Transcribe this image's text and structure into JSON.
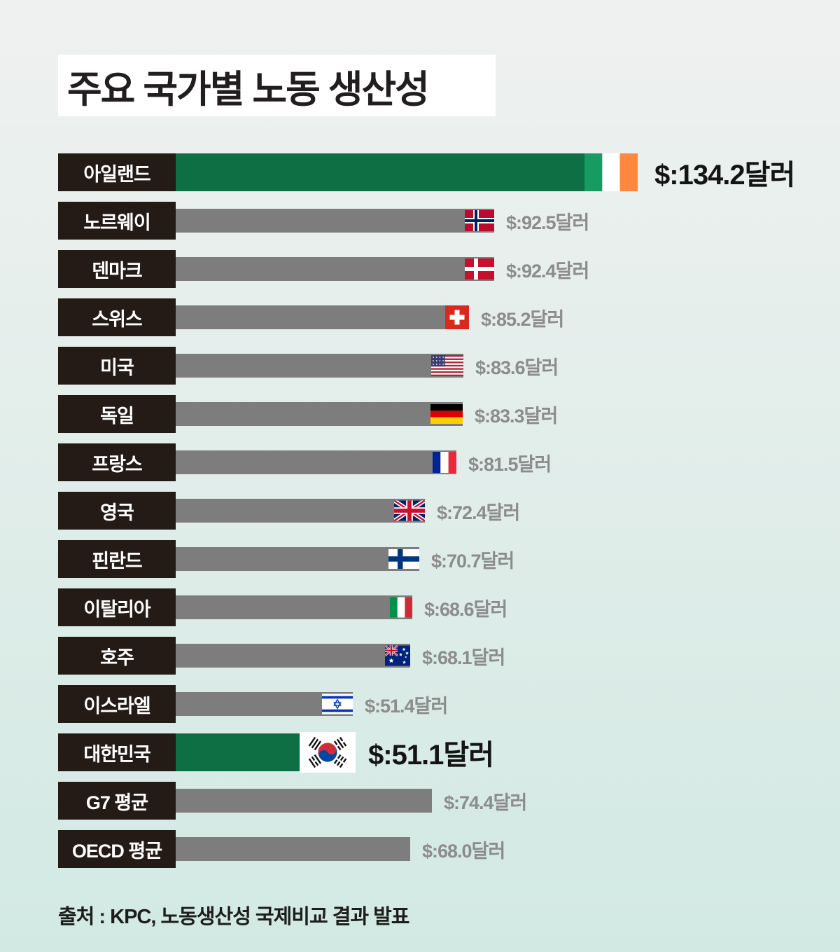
{
  "header": {
    "title": "주요 국가별 노동 생산성"
  },
  "footer": {
    "source": "출처 : KPC, 노동생산성 국제비교 결과 발표"
  },
  "chart_data": {
    "type": "bar",
    "orientation": "horizontal",
    "title": "주요 국가별 노동 생산성",
    "source": "출처 : KPC, 노동생산성 국제비교 결과 발표",
    "xlim": [
      0,
      140
    ],
    "grid": false,
    "legend": "none",
    "categories": [
      "아일랜드",
      "노르웨이",
      "덴마크",
      "스위스",
      "미국",
      "독일",
      "프랑스",
      "영국",
      "핀란드",
      "이탈리아",
      "호주",
      "이스라엘",
      "대한민국",
      "G7 평균",
      "OECD 평균"
    ],
    "values": [
      134.2,
      92.5,
      92.4,
      85.2,
      83.6,
      83.3,
      81.5,
      72.4,
      70.7,
      68.6,
      68.1,
      51.4,
      51.1,
      74.4,
      68.0
    ],
    "colors": {
      "bar_default": "#7d7d7d",
      "bar_highlight": "#0e6f44",
      "category_box_bg": "#241a16",
      "category_box_text": "#ffffff",
      "value_text": "#8c8c8c",
      "value_text_highlight": "#141414"
    },
    "rows": [
      {
        "label": "아일랜드",
        "value": 134.2,
        "value_label": "$:134.2달러",
        "flag": "ireland",
        "highlight": true
      },
      {
        "label": "노르웨이",
        "value": 92.5,
        "value_label": "$:92.5달러",
        "flag": "norway",
        "highlight": false
      },
      {
        "label": "덴마크",
        "value": 92.4,
        "value_label": "$:92.4달러",
        "flag": "denmark",
        "highlight": false
      },
      {
        "label": "스위스",
        "value": 85.2,
        "value_label": "$:85.2달러",
        "flag": "switzerland",
        "highlight": false
      },
      {
        "label": "미국",
        "value": 83.6,
        "value_label": "$:83.6달러",
        "flag": "usa",
        "highlight": false
      },
      {
        "label": "독일",
        "value": 83.3,
        "value_label": "$:83.3달러",
        "flag": "germany",
        "highlight": false
      },
      {
        "label": "프랑스",
        "value": 81.5,
        "value_label": "$:81.5달러",
        "flag": "france",
        "highlight": false
      },
      {
        "label": "영국",
        "value": 72.4,
        "value_label": "$:72.4달러",
        "flag": "uk",
        "highlight": false
      },
      {
        "label": "핀란드",
        "value": 70.7,
        "value_label": "$:70.7달러",
        "flag": "finland",
        "highlight": false
      },
      {
        "label": "이탈리아",
        "value": 68.6,
        "value_label": "$:68.6달러",
        "flag": "italy",
        "highlight": false
      },
      {
        "label": "호주",
        "value": 68.1,
        "value_label": "$:68.1달러",
        "flag": "australia",
        "highlight": false
      },
      {
        "label": "이스라엘",
        "value": 51.4,
        "value_label": "$:51.4달러",
        "flag": "israel",
        "highlight": false
      },
      {
        "label": "대한민국",
        "value": 51.1,
        "value_label": "$:51.1달러",
        "flag": "south-korea",
        "highlight": true
      },
      {
        "label": "G7 평균",
        "value": 74.4,
        "value_label": "$:74.4달러",
        "flag": null,
        "highlight": false
      },
      {
        "label": "OECD 평균",
        "value": 68.0,
        "value_label": "$:68.0달러",
        "flag": null,
        "highlight": false
      }
    ]
  }
}
